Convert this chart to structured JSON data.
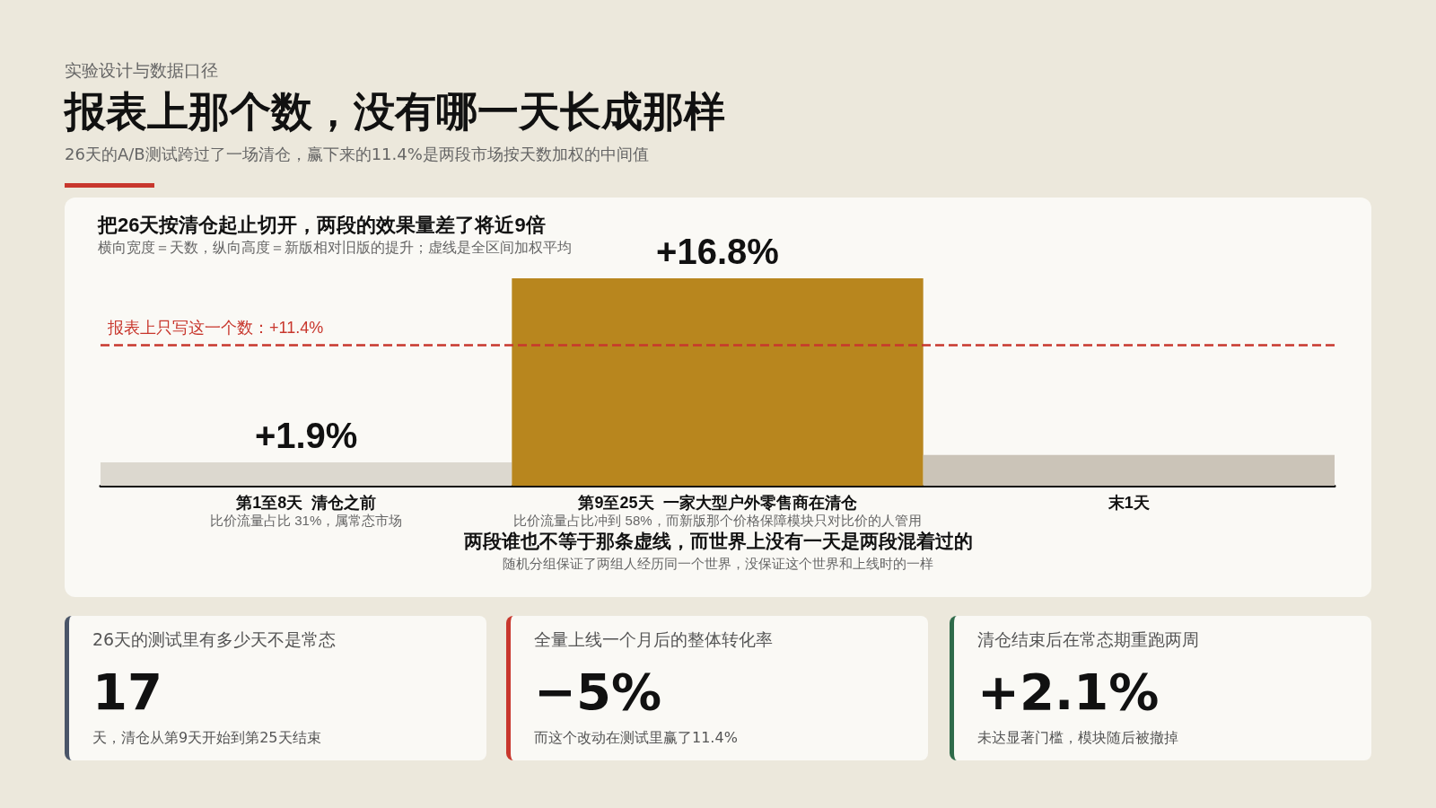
{
  "chart_data": [
    {
      "type": "other",
      "title": "报表上那个数，没有哪一天长成那样",
      "subtitle": "26天的A/B测试跨过了一场清仓，赢下来的11.4%是两段市场按天数加权的中间值",
      "annotations": [
        "实验设计与数据口径"
      ],
      "color": "#c8372d"
    },
    {
      "type": "bar",
      "title": "把26天按清仓起止切开，两段的效果量差了将近9倍",
      "subtitle": "横向宽度＝天数，纵向高度＝新版相对旧版的提升；虚线是全区间加权平均",
      "categories": [
        "第1至8天  清仓之前",
        "第9至25天  一家大型户外零售商在清仓",
        "末1天"
      ],
      "values": [
        1.9,
        16.8,
        2.5
      ],
      "value_labels": [
        "+1.9%",
        "+16.8%",
        null
      ],
      "colors": [
        "#dcd8cf",
        "#b8861e",
        "#cbc4b8"
      ],
      "ref_lines": [
        {
          "axis": "y",
          "value": 11.4,
          "label": "报表上只写这一个数：+11.4%",
          "color": "#c8372d",
          "line_style": "dashed"
        }
      ],
      "annotations": [
        "比价流量占比 31%，属常态市场",
        "比价流量占比冲到 58%，而新版那个价格保障模块只对比价的人管用",
        "两段谁也不等于那条虚线，而世界上没有一天是两段混着过的",
        "随机分组保证了两组人经历同一个世界，没保证这个世界和上线时的一样"
      ],
      "tick_labels": "x",
      "grid": false
    },
    {
      "type": "other",
      "title": "26天的测试里有多少天不是常态",
      "annotations": [
        "17",
        "天，清仓从第9天开始到第25天结束"
      ],
      "color": "#4a5568"
    },
    {
      "type": "other",
      "title": "全量上线一个月后的整体转化率",
      "annotations": [
        "−5%",
        "而这个改动在测试里赢了11.4%"
      ],
      "color": "#c8372d"
    },
    {
      "type": "other",
      "title": "清仓结束后在常态期重跑两周",
      "annotations": [
        "+2.1%",
        "未达显著门槛，模块随后被撤掉"
      ],
      "color": "#2f6b4a"
    }
  ]
}
